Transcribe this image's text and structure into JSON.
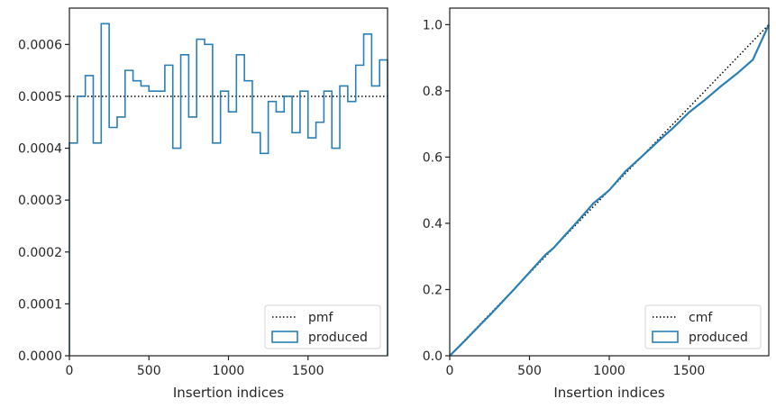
{
  "chart_data": [
    {
      "type": "histogram-step",
      "xlabel": "Insertion indices",
      "ylabel": "",
      "xlim": [
        0,
        2000
      ],
      "ylim": [
        0,
        0.00067
      ],
      "x_ticks": [
        0,
        500,
        1000,
        1500
      ],
      "x_tick_labels": [
        "0",
        "500",
        "1000",
        "1500"
      ],
      "y_ticks": [
        0,
        0.0001,
        0.0002,
        0.0003,
        0.0004,
        0.0005,
        0.0006
      ],
      "y_tick_labels": [
        "0.0000",
        "0.0001",
        "0.0002",
        "0.0003",
        "0.0004",
        "0.0005",
        "0.0006"
      ],
      "legend_position": "lower right",
      "grid": false,
      "series": [
        {
          "name": "pmf",
          "kind": "line",
          "style": "dotted",
          "color": "#000000",
          "x": [
            0,
            2000
          ],
          "y": [
            0.0005,
            0.0005
          ]
        },
        {
          "name": "produced",
          "kind": "step",
          "color": "#2a7fb5",
          "bin_edges": [
            0,
            50,
            100,
            150,
            200,
            250,
            300,
            350,
            400,
            450,
            500,
            550,
            600,
            650,
            700,
            750,
            800,
            850,
            900,
            950,
            1000,
            1050,
            1100,
            1150,
            1200,
            1250,
            1300,
            1350,
            1400,
            1450,
            1500,
            1550,
            1600,
            1650,
            1700,
            1750,
            1800,
            1850,
            1900,
            1950,
            2000
          ],
          "values": [
            0.00041,
            0.0005,
            0.00054,
            0.00041,
            0.00064,
            0.00044,
            0.00046,
            0.00055,
            0.00053,
            0.00052,
            0.00051,
            0.00051,
            0.00056,
            0.0004,
            0.00058,
            0.00046,
            0.00061,
            0.0006,
            0.00041,
            0.00051,
            0.00047,
            0.00058,
            0.00053,
            0.00043,
            0.00039,
            0.00049,
            0.00047,
            0.0005,
            0.00043,
            0.00051,
            0.00042,
            0.00045,
            0.00051,
            0.0004,
            0.00052,
            0.00049,
            0.00056,
            0.00062,
            0.00052,
            0.00057
          ]
        }
      ]
    },
    {
      "type": "line",
      "xlabel": "Insertion indices",
      "ylabel": "",
      "xlim": [
        0,
        2000
      ],
      "ylim": [
        0,
        1.05
      ],
      "x_ticks": [
        0,
        500,
        1000,
        1500
      ],
      "x_tick_labels": [
        "0",
        "500",
        "1000",
        "1500"
      ],
      "y_ticks": [
        0,
        0.2,
        0.4,
        0.6,
        0.8,
        1.0
      ],
      "y_tick_labels": [
        "0.0",
        "0.2",
        "0.4",
        "0.6",
        "0.8",
        "1.0"
      ],
      "legend_position": "lower right",
      "grid": false,
      "series": [
        {
          "name": "cmf",
          "kind": "line",
          "style": "dotted",
          "color": "#000000",
          "x": [
            0,
            2000
          ],
          "y": [
            0,
            1.0
          ]
        },
        {
          "name": "produced",
          "kind": "line",
          "color": "#2a7fb5",
          "x": [
            0,
            100,
            200,
            250,
            400,
            500,
            600,
            650,
            700,
            800,
            900,
            1000,
            1100,
            1200,
            1300,
            1400,
            1500,
            1600,
            1700,
            1800,
            1900,
            2000
          ],
          "y": [
            0,
            0.048,
            0.098,
            0.122,
            0.199,
            0.252,
            0.305,
            0.325,
            0.352,
            0.405,
            0.46,
            0.5,
            0.556,
            0.6,
            0.645,
            0.688,
            0.735,
            0.773,
            0.814,
            0.852,
            0.894,
            1.0
          ]
        }
      ]
    }
  ]
}
